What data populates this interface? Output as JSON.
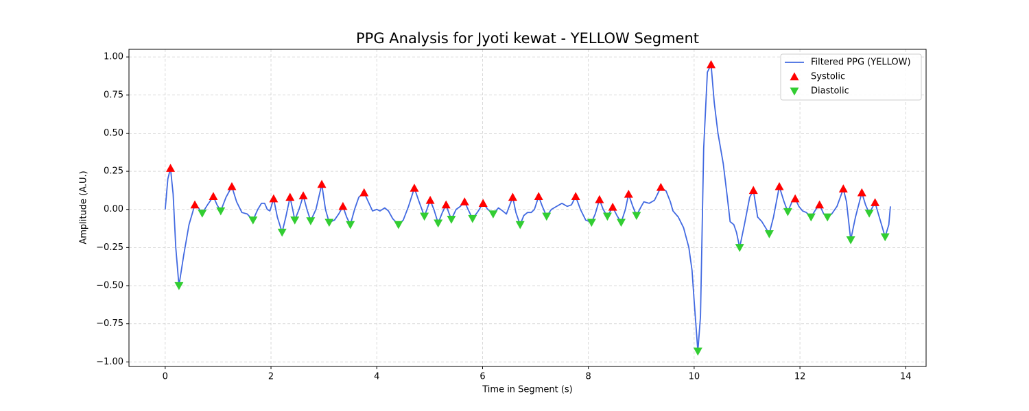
{
  "chart_data": {
    "type": "line",
    "title": "PPG Analysis for Jyoti kewat - YELLOW Segment",
    "xlabel": "Time in Segment (s)",
    "ylabel": "Amplitude (A.U.)",
    "xlim": [
      -0.685,
      14.385
    ],
    "ylim": [
      -1.03,
      1.05
    ],
    "xticks": [
      0,
      2,
      4,
      6,
      8,
      10,
      12,
      14
    ],
    "yticks": [
      {
        "value": -1,
        "label": "−1.00"
      },
      {
        "value": -0.75,
        "label": "−0.75"
      },
      {
        "value": -0.5,
        "label": "−0.50"
      },
      {
        "value": -0.25,
        "label": "−0.25"
      },
      {
        "value": 0,
        "label": "0.00"
      },
      0.25,
      {
        "value": 0.5,
        "label": "0.50"
      },
      0.75,
      {
        "value": 1,
        "label": "1.00"
      }
    ],
    "grid": true,
    "legend": "upper right",
    "series": [
      {
        "name": "Filtered PPG (YELLOW)",
        "type": "line",
        "color": "#4169e1",
        "x": [
          0,
          0.05,
          0.1,
          0.15,
          0.2,
          0.26,
          0.35,
          0.45,
          0.56,
          0.63,
          0.7,
          0.8,
          0.91,
          0.98,
          1.05,
          1.15,
          1.26,
          1.35,
          1.45,
          1.55,
          1.66,
          1.75,
          1.82,
          1.88,
          1.93,
          1.98,
          2.05,
          2.12,
          2.21,
          2.28,
          2.36,
          2.41,
          2.45,
          2.53,
          2.61,
          2.68,
          2.75,
          2.85,
          2.96,
          3.03,
          3.1,
          3.2,
          3.28,
          3.36,
          3.43,
          3.5,
          3.58,
          3.66,
          3.76,
          3.84,
          3.92,
          4.0,
          4.06,
          4.15,
          4.22,
          4.3,
          4.41,
          4.5,
          4.6,
          4.71,
          4.8,
          4.9,
          5.01,
          5.08,
          5.16,
          5.24,
          5.31,
          5.36,
          5.41,
          5.5,
          5.58,
          5.66,
          5.74,
          5.81,
          5.9,
          6.01,
          6.1,
          6.2,
          6.3,
          6.38,
          6.45,
          6.57,
          6.63,
          6.71,
          6.78,
          6.85,
          6.92,
          6.98,
          7.06,
          7.13,
          7.21,
          7.3,
          7.4,
          7.5,
          7.6,
          7.68,
          7.76,
          7.85,
          7.95,
          8.06,
          8.13,
          8.21,
          8.28,
          8.36,
          8.46,
          8.54,
          8.62,
          8.7,
          8.76,
          8.84,
          8.91,
          9.0,
          9.05,
          9.15,
          9.25,
          9.37,
          9.47,
          9.55,
          9.6,
          9.7,
          9.8,
          9.9,
          9.96,
          10.0,
          10.07,
          10.12,
          10.18,
          10.25,
          10.32,
          10.38,
          10.45,
          10.55,
          10.62,
          10.68,
          10.75,
          10.8,
          10.86,
          10.95,
          11.05,
          11.12,
          11.2,
          11.28,
          11.35,
          11.42,
          11.5,
          11.61,
          11.7,
          11.77,
          11.85,
          11.91,
          11.98,
          12.05,
          12.12,
          12.21,
          12.3,
          12.37,
          12.45,
          12.52,
          12.6,
          12.7,
          12.82,
          12.88,
          12.96,
          13.05,
          13.17,
          13.24,
          13.31,
          13.42,
          13.5,
          13.61,
          13.68,
          13.71
        ],
        "values": [
          0,
          0.2,
          0.27,
          0.1,
          -0.25,
          -0.5,
          -0.3,
          -0.1,
          0.03,
          0.01,
          -0.025,
          0.03,
          0.085,
          0.03,
          -0.01,
          0.08,
          0.15,
          0.05,
          -0.02,
          -0.03,
          -0.07,
          0,
          0.04,
          0.04,
          0,
          -0.01,
          0.07,
          -0.05,
          -0.15,
          -0.05,
          0.08,
          0,
          -0.07,
          0,
          0.09,
          0,
          -0.075,
          0,
          0.165,
          0,
          -0.085,
          -0.07,
          -0.03,
          0.02,
          -0.05,
          -0.1,
          0,
          0.08,
          0.11,
          0.05,
          -0.01,
          0,
          -0.01,
          0.01,
          -0.01,
          -0.06,
          -0.1,
          -0.07,
          0.02,
          0.14,
          0.05,
          -0.045,
          0.06,
          0,
          -0.09,
          -0.02,
          0.03,
          -0.02,
          -0.065,
          0,
          0.02,
          0.05,
          -0.01,
          -0.06,
          -0.02,
          0.04,
          0,
          -0.03,
          0.01,
          -0.01,
          -0.03,
          0.08,
          -0.02,
          -0.1,
          -0.04,
          -0.02,
          -0.02,
          0,
          0.085,
          0.02,
          -0.045,
          0,
          0.02,
          0.04,
          0.02,
          0.03,
          0.085,
          0,
          -0.07,
          -0.085,
          -0.03,
          0.065,
          0,
          -0.045,
          0.015,
          -0.04,
          -0.085,
          0,
          0.1,
          0.02,
          -0.04,
          0.02,
          0.05,
          0.04,
          0.06,
          0.145,
          0.12,
          0.05,
          -0.01,
          -0.05,
          -0.12,
          -0.25,
          -0.4,
          -0.6,
          -0.93,
          -0.7,
          0.4,
          0.9,
          0.95,
          0.7,
          0.5,
          0.3,
          0.1,
          -0.08,
          -0.1,
          -0.15,
          -0.25,
          -0.1,
          0.08,
          0.125,
          -0.05,
          -0.08,
          -0.12,
          -0.16,
          -0.05,
          0.15,
          0.05,
          -0.015,
          0.05,
          0.07,
          0.02,
          -0.01,
          -0.02,
          -0.05,
          0,
          0.03,
          -0.03,
          -0.05,
          -0.03,
          0.02,
          0.135,
          0.05,
          -0.2,
          -0.05,
          0.11,
          0.03,
          -0.025,
          0.045,
          -0.05,
          -0.18,
          -0.1,
          0.02
        ]
      },
      {
        "name": "Systolic",
        "type": "scatter",
        "marker": "triangle-up",
        "color": "#ff0000",
        "x": [
          0.1,
          0.56,
          0.91,
          1.26,
          2.05,
          2.36,
          2.61,
          2.96,
          3.36,
          3.76,
          4.71,
          5.01,
          5.31,
          5.66,
          6.01,
          6.57,
          7.06,
          7.76,
          8.21,
          8.46,
          8.76,
          9.37,
          10.32,
          11.12,
          11.61,
          11.91,
          12.37,
          12.82,
          13.17,
          13.42
        ],
        "values": [
          0.27,
          0.03,
          0.085,
          0.15,
          0.07,
          0.08,
          0.09,
          0.165,
          0.02,
          0.11,
          0.14,
          0.06,
          0.03,
          0.05,
          0.04,
          0.08,
          0.085,
          0.085,
          0.065,
          0.015,
          0.1,
          0.145,
          0.95,
          0.125,
          0.15,
          0.07,
          0.03,
          0.135,
          0.11,
          0.045
        ]
      },
      {
        "name": "Diastolic",
        "type": "scatter",
        "marker": "triangle-down",
        "color": "#32cd32",
        "x": [
          0.26,
          0.7,
          1.05,
          1.66,
          2.21,
          2.45,
          2.75,
          3.1,
          3.5,
          4.41,
          4.9,
          5.16,
          5.41,
          5.81,
          6.2,
          6.71,
          7.21,
          8.06,
          8.36,
          8.62,
          8.91,
          10.07,
          10.86,
          11.42,
          11.77,
          12.21,
          12.52,
          12.96,
          13.31,
          13.61
        ],
        "values": [
          -0.5,
          -0.025,
          -0.01,
          -0.07,
          -0.15,
          -0.07,
          -0.075,
          -0.085,
          -0.1,
          -0.1,
          -0.045,
          -0.09,
          -0.065,
          -0.06,
          -0.03,
          -0.1,
          -0.045,
          -0.085,
          -0.045,
          -0.085,
          -0.04,
          -0.93,
          -0.25,
          -0.16,
          -0.015,
          -0.05,
          -0.05,
          -0.2,
          -0.025,
          -0.18
        ]
      }
    ]
  }
}
